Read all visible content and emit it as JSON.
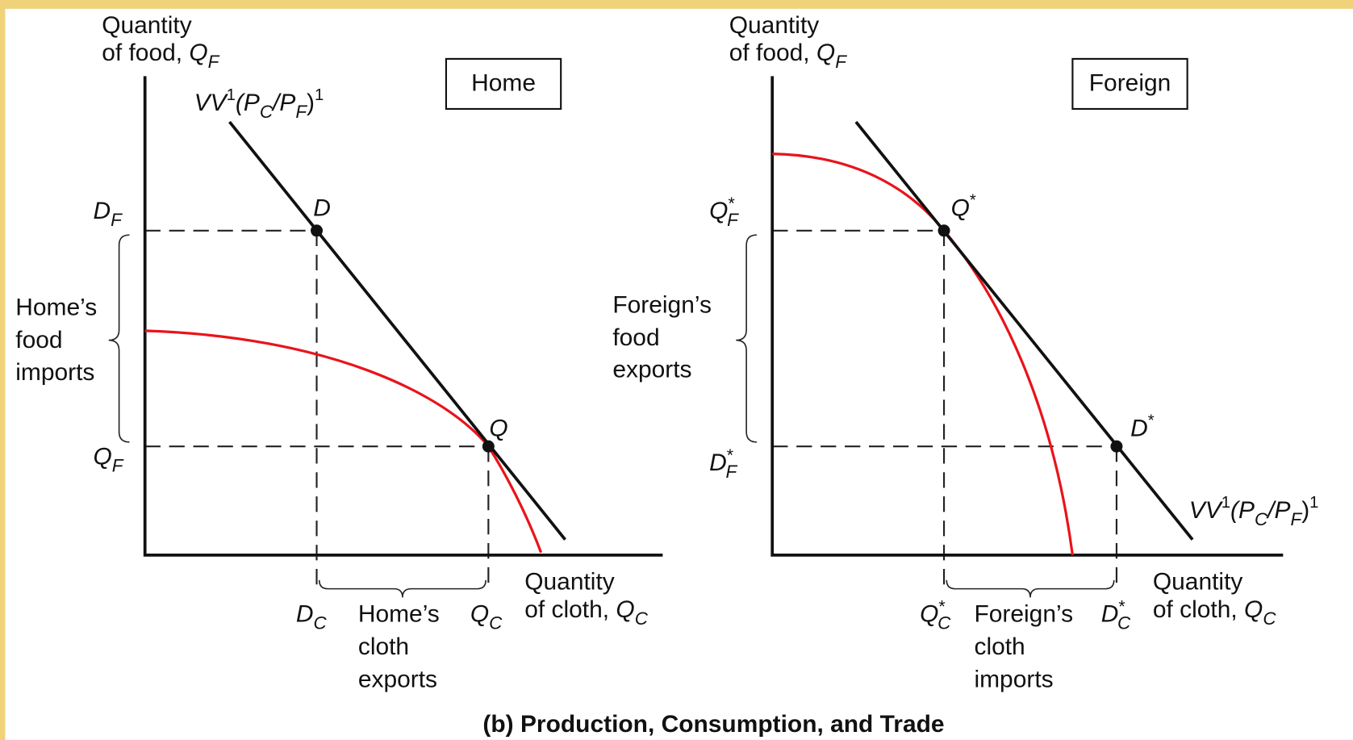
{
  "caption": "(b) Production, Consumption, and Trade",
  "panels": [
    {
      "title": "Home",
      "y_axis_label": [
        "Quantity",
        "of food, ",
        "Q",
        "F"
      ],
      "x_axis_label": [
        "Quantity",
        "of cloth, ",
        "Q",
        "C"
      ],
      "line_label": [
        "VV",
        "1",
        "(P",
        "C",
        "/P",
        "F",
        ")",
        "1"
      ],
      "y_ticks": [
        [
          "D",
          "F"
        ],
        [
          "Q",
          "F"
        ]
      ],
      "x_ticks": [
        [
          "D",
          "C"
        ],
        [
          "Q",
          "C"
        ]
      ],
      "points": [
        "D",
        "Q"
      ],
      "side_note": [
        "Home’s",
        "food",
        "imports"
      ],
      "bottom_note": [
        "Home’s",
        "cloth",
        "exports"
      ]
    },
    {
      "title": "Foreign",
      "y_axis_label": [
        "Quantity",
        "of food, ",
        "Q",
        "F"
      ],
      "x_axis_label": [
        "Quantity",
        "of cloth, ",
        "Q",
        "C"
      ],
      "line_label": [
        "VV",
        "1",
        "(P",
        "C",
        "/P",
        "F",
        ")",
        "1"
      ],
      "y_ticks": [
        [
          "Q",
          "*",
          "F"
        ],
        [
          "D",
          "*",
          "F"
        ]
      ],
      "x_ticks": [
        [
          "Q",
          "*",
          "C"
        ],
        [
          "D",
          "*",
          "C"
        ]
      ],
      "points": [
        [
          "Q",
          "*"
        ],
        [
          "D",
          "*"
        ]
      ],
      "side_note": [
        "Foreign’s",
        "food",
        "exports"
      ],
      "bottom_note": [
        "Foreign’s",
        "cloth",
        "imports"
      ]
    }
  ]
}
